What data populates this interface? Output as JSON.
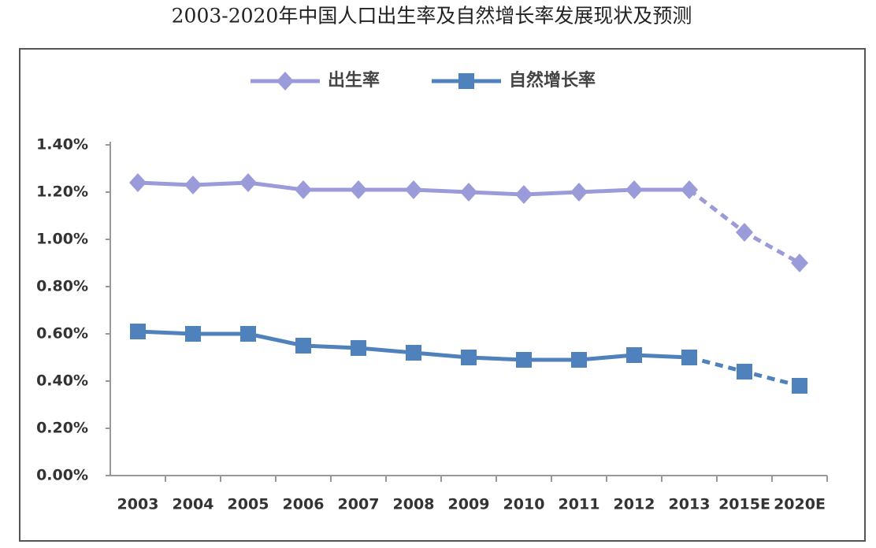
{
  "chart_data": {
    "type": "line",
    "title": "2003-2020年中国人口出生率及自然增长率发展现状及预测",
    "categories": [
      "2003",
      "2004",
      "2005",
      "2006",
      "2007",
      "2008",
      "2009",
      "2010",
      "2011",
      "2012",
      "2013",
      "2015E",
      "2020E"
    ],
    "series": [
      {
        "name": "出生率",
        "color": "#9a9bd8",
        "marker": "diamond",
        "values": [
          1.24,
          1.23,
          1.24,
          1.21,
          1.21,
          1.21,
          1.2,
          1.19,
          1.2,
          1.21,
          1.21,
          1.03,
          0.9
        ]
      },
      {
        "name": "自然增长率",
        "color": "#4f81bd",
        "marker": "square",
        "values": [
          0.61,
          0.6,
          0.6,
          0.55,
          0.54,
          0.52,
          0.5,
          0.49,
          0.49,
          0.51,
          0.5,
          0.44,
          0.38
        ]
      }
    ],
    "ylim": [
      0,
      1.4
    ],
    "yticks": [
      {
        "value": 0,
        "label": "0.00%"
      },
      {
        "value": 0.2,
        "label": "0.20%"
      },
      {
        "value": 0.4,
        "label": "0.40%"
      },
      {
        "value": 0.6,
        "label": "0.60%"
      },
      {
        "value": 0.8,
        "label": "0.80%"
      },
      {
        "value": 1.0,
        "label": "1.00%"
      },
      {
        "value": 1.2,
        "label": "1.20%"
      },
      {
        "value": 1.4,
        "label": "1.40%"
      }
    ],
    "grid": false,
    "legend": "top"
  }
}
